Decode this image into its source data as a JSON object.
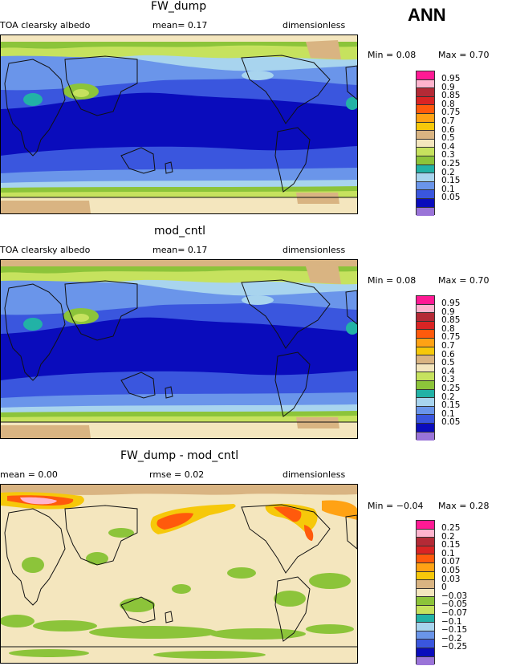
{
  "season": "ANN",
  "palette_base": [
    "#9a74d8",
    "#0a0cbc",
    "#3a56de",
    "#6a95ea",
    "#a8d4ee",
    "#22b2a6",
    "#8cc43a",
    "#c6e25e",
    "#f4e6be",
    "#d9b482",
    "#f6c80a",
    "#ffa214",
    "#ff5a0c",
    "#da2424",
    "#b42a36",
    "#ffb4ce",
    "#ff1a94"
  ],
  "panels": [
    {
      "title": "FW_dump",
      "left": "TOA clearsky albedo",
      "mid": "mean=   0.17",
      "right": "dimensionless",
      "min_text": "Min =   0.08",
      "max_text": "Max =   0.70",
      "levels": [
        "0.95",
        "0.9",
        "0.85",
        "0.8",
        "0.75",
        "0.7",
        "0.6",
        "0.5",
        "0.4",
        "0.3",
        "0.25",
        "0.2",
        "0.15",
        "0.1",
        "0.05"
      ],
      "colors": [
        "#ff1a94",
        "#ffb4ce",
        "#b42a36",
        "#da2424",
        "#ff5a0c",
        "#ffa214",
        "#f6c80a",
        "#d9b482",
        "#f4e6be",
        "#c6e25e",
        "#8cc43a",
        "#22b2a6",
        "#a8d4ee",
        "#6a95ea",
        "#3a56de",
        "#0a0cbc",
        "#9a74d8"
      ]
    },
    {
      "title": "mod_cntl",
      "left": "TOA clearsky albedo",
      "mid": "mean=   0.17",
      "right": "dimensionless",
      "min_text": "Min =   0.08",
      "max_text": "Max =   0.70",
      "levels": [
        "0.95",
        "0.9",
        "0.85",
        "0.8",
        "0.75",
        "0.7",
        "0.6",
        "0.5",
        "0.4",
        "0.3",
        "0.25",
        "0.2",
        "0.15",
        "0.1",
        "0.05"
      ],
      "colors": [
        "#ff1a94",
        "#ffb4ce",
        "#b42a36",
        "#da2424",
        "#ff5a0c",
        "#ffa214",
        "#f6c80a",
        "#d9b482",
        "#f4e6be",
        "#c6e25e",
        "#8cc43a",
        "#22b2a6",
        "#a8d4ee",
        "#6a95ea",
        "#3a56de",
        "#0a0cbc",
        "#9a74d8"
      ]
    },
    {
      "title": "FW_dump - mod_cntl",
      "left": "mean =   0.00",
      "mid": "rmse =   0.02",
      "right": "dimensionless",
      "min_text": "Min =  −0.04",
      "max_text": "Max =   0.28",
      "levels": [
        "0.25",
        "0.2",
        "0.15",
        "0.1",
        "0.07",
        "0.05",
        "0.03",
        "0",
        "−0.03",
        "−0.05",
        "−0.07",
        "−0.1",
        "−0.15",
        "−0.2",
        "−0.25"
      ],
      "colors": [
        "#ff1a94",
        "#ffb4ce",
        "#b42a36",
        "#da2424",
        "#ff5a0c",
        "#ffa214",
        "#f6c80a",
        "#d9b482",
        "#f4e6be",
        "#8cc43a",
        "#c6e25e",
        "#22b2a6",
        "#a8d4ee",
        "#6a95ea",
        "#3a56de",
        "#0a0cbc",
        "#9a74d8"
      ]
    }
  ]
}
